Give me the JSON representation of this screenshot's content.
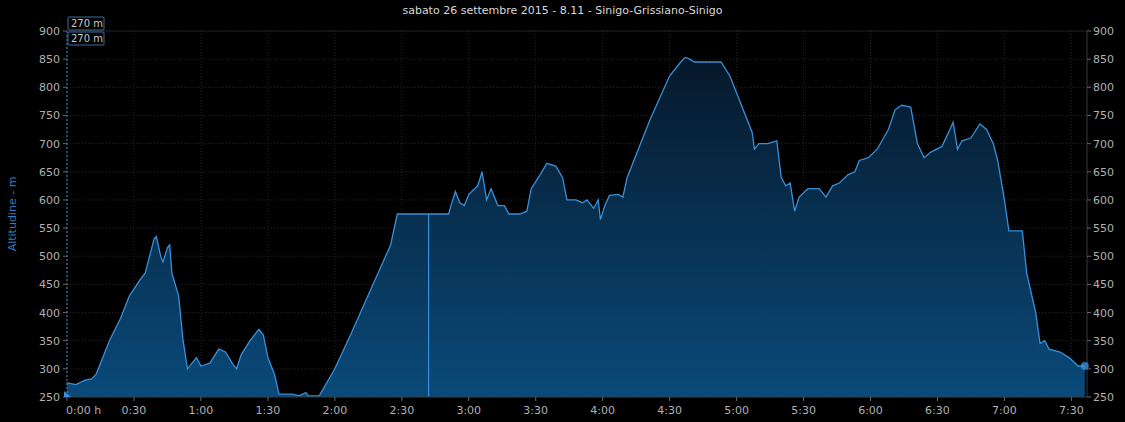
{
  "chart_data": {
    "type": "area",
    "title": "sabato 26 settembre 2015 - 8.11 -  Sinigo-Grissiano-Sinigo",
    "y_label": "Altitudine - m",
    "annotations": [
      "270 m",
      "270 m"
    ],
    "cursor": 162,
    "color": "#3a8fd9",
    "grid": true,
    "x": [
      0,
      4,
      8,
      11,
      13,
      15,
      19,
      24,
      28,
      33,
      35,
      37,
      39,
      40,
      42,
      43,
      45,
      46,
      47,
      50,
      52,
      54,
      56,
      58,
      60,
      64,
      68,
      71,
      74,
      76,
      78,
      82,
      86,
      88,
      90,
      93,
      95,
      101,
      104,
      107,
      108,
      113,
      120,
      127,
      136,
      145,
      148,
      162,
      171,
      172,
      174,
      176,
      178,
      180,
      184,
      186,
      188,
      190,
      193,
      196,
      198,
      203,
      206,
      208,
      212,
      215,
      219,
      222,
      224,
      228,
      231,
      233,
      236,
      238,
      239,
      241,
      243,
      247,
      249,
      251,
      257,
      261,
      266,
      270,
      275,
      277,
      279,
      281,
      293,
      297,
      301,
      307,
      308,
      310,
      314,
      318,
      320,
      322,
      324,
      326,
      328,
      332,
      337,
      340,
      343,
      346,
      350,
      353,
      355,
      359,
      363,
      368,
      371,
      374,
      378,
      381,
      384,
      387,
      392,
      395,
      397,
      399,
      401,
      405,
      409,
      412,
      415,
      417,
      420,
      422,
      428,
      430,
      434,
      436,
      438,
      440,
      445,
      449,
      453,
      456
    ],
    "values": [
      275,
      272,
      280,
      282,
      290,
      310,
      350,
      390,
      430,
      460,
      470,
      500,
      530,
      535,
      500,
      490,
      515,
      520,
      470,
      430,
      350,
      300,
      310,
      320,
      305,
      310,
      335,
      330,
      310,
      300,
      325,
      350,
      370,
      360,
      320,
      290,
      255,
      255,
      252,
      258,
      252,
      252,
      300,
      360,
      440,
      520,
      575,
      575,
      575,
      590,
      615,
      595,
      590,
      610,
      625,
      650,
      600,
      620,
      590,
      590,
      575,
      575,
      580,
      620,
      645,
      665,
      660,
      640,
      600,
      600,
      595,
      600,
      585,
      600,
      565,
      590,
      608,
      610,
      605,
      640,
      700,
      740,
      785,
      820,
      845,
      853,
      850,
      845,
      845,
      820,
      780,
      720,
      690,
      700,
      700,
      705,
      640,
      625,
      630,
      580,
      605,
      620,
      620,
      605,
      625,
      630,
      645,
      650,
      670,
      675,
      690,
      725,
      760,
      768,
      765,
      700,
      675,
      685,
      695,
      720,
      738,
      690,
      705,
      710,
      735,
      725,
      700,
      670,
      600,
      545,
      545,
      470,
      400,
      345,
      350,
      335,
      330,
      320,
      305,
      305
    ],
    "xlim": [
      0,
      457
    ],
    "xticks": [
      {
        "value": 0,
        "label": "0:00 h"
      },
      {
        "value": 30,
        "label": "0:30"
      },
      {
        "value": 60,
        "label": "1:00"
      },
      {
        "value": 90,
        "label": "1:30"
      },
      {
        "value": 120,
        "label": "2:00"
      },
      {
        "value": 150,
        "label": "2:30"
      },
      {
        "value": 180,
        "label": "3:00"
      },
      {
        "value": 210,
        "label": "3:30"
      },
      {
        "value": 240,
        "label": "4:00"
      },
      {
        "value": 270,
        "label": "4:30"
      },
      {
        "value": 300,
        "label": "5:00"
      },
      {
        "value": 330,
        "label": "5:30"
      },
      {
        "value": 360,
        "label": "6:00"
      },
      {
        "value": 390,
        "label": "6:30"
      },
      {
        "value": 420,
        "label": "7:00"
      },
      {
        "value": 450,
        "label": "7:30"
      }
    ],
    "ylim": [
      250,
      900
    ],
    "yticks": [
      250,
      300,
      350,
      400,
      450,
      500,
      550,
      600,
      650,
      700,
      750,
      800,
      850,
      900
    ],
    "y2lim": [
      250,
      900
    ],
    "y2ticks": [
      250,
      300,
      350,
      400,
      450,
      500,
      550,
      600,
      650,
      700,
      750,
      800,
      850,
      900
    ]
  }
}
